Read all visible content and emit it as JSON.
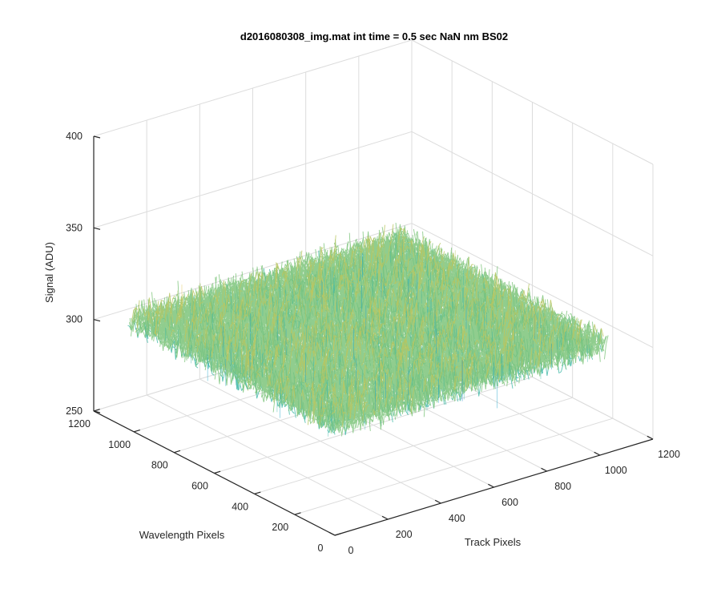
{
  "chart_data": {
    "type": "surface3d",
    "title": "d2016080308_img.mat int time = 0.5 sec  NaN nm BS02",
    "xlabel": "Track Pixels",
    "ylabel": "Wavelength Pixels",
    "zlabel": "Signal (ADU)",
    "xlim": [
      0,
      1200
    ],
    "ylim": [
      0,
      1200
    ],
    "zlim": [
      250,
      400
    ],
    "xticks": [
      0,
      200,
      400,
      600,
      800,
      1000,
      1200
    ],
    "yticks": [
      0,
      200,
      400,
      600,
      800,
      1000,
      1200
    ],
    "zticks": [
      250,
      300,
      350,
      400
    ],
    "xtick_labels": [
      "0",
      "200",
      "400",
      "600",
      "800",
      "1000",
      "1200"
    ],
    "ytick_labels": [
      "0",
      "200",
      "400",
      "600",
      "800",
      "1000",
      "1200"
    ],
    "ztick_labels": [
      "250",
      "300",
      "350",
      "400"
    ],
    "data_extent": {
      "x": [
        1,
        1024
      ],
      "y": [
        1,
        1024
      ]
    },
    "signal_mean": 310,
    "signal_noise_range": [
      280,
      340
    ],
    "grid": true,
    "colormap": [
      "#0072bd",
      "#1aa3c8",
      "#3fb8a7",
      "#7cc47a",
      "#b9c560",
      "#e3c44a",
      "#f2d03b"
    ]
  }
}
